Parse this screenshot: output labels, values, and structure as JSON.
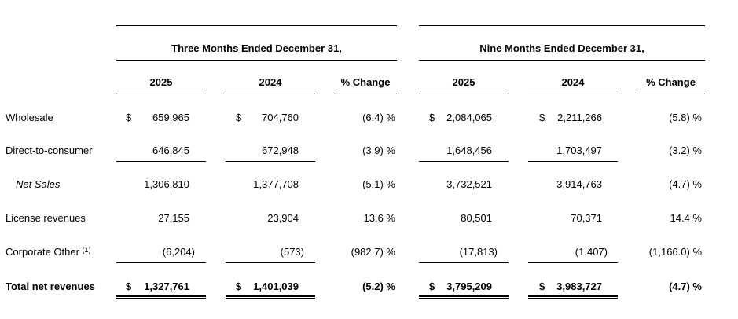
{
  "headers": {
    "period1": "Three Months Ended December 31,",
    "period2": "Nine Months Ended December 31,",
    "cols": [
      "2025",
      "2024",
      "% Change",
      "2025",
      "2024",
      "% Change"
    ]
  },
  "currency_symbol": "$",
  "rows": [
    {
      "label": "Wholesale",
      "values": [
        "659,965",
        "704,760",
        "(6.4) %",
        "2,084,065",
        "2,211,266",
        "(5.8) %"
      ]
    },
    {
      "label": "Direct-to-consumer",
      "values": [
        "646,845",
        "672,948",
        "(3.9) %",
        "1,648,456",
        "1,703,497",
        "(3.2) %"
      ]
    },
    {
      "label": "Net Sales",
      "values": [
        "1,306,810",
        "1,377,708",
        "(5.1) %",
        "3,732,521",
        "3,914,763",
        "(4.7) %"
      ]
    },
    {
      "label": "License revenues",
      "values": [
        "27,155",
        "23,904",
        "13.6 %",
        "80,501",
        "70,371",
        "14.4 %"
      ]
    },
    {
      "label": "Corporate Other",
      "footnote": "(1)",
      "values": [
        "(6,204)",
        "(573)",
        "(982.7) %",
        "(17,813)",
        "(1,407)",
        "(1,166.0) %"
      ]
    },
    {
      "label": "Total net revenues",
      "values": [
        "1,327,761",
        "1,401,039",
        "(5.2) %",
        "3,795,209",
        "3,983,727",
        "(4.7) %"
      ]
    }
  ]
}
